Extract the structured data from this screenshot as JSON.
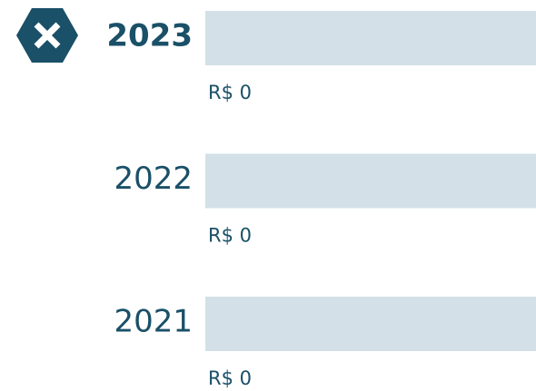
{
  "chart_data": {
    "type": "bar",
    "orientation": "horizontal",
    "categories": [
      "2023",
      "2022",
      "2021"
    ],
    "values": [
      0,
      0,
      0
    ],
    "value_labels": [
      "R$ 0",
      "R$ 0",
      "R$ 0"
    ],
    "color": "#1a5068",
    "track_color": "#d3e0e8"
  }
}
